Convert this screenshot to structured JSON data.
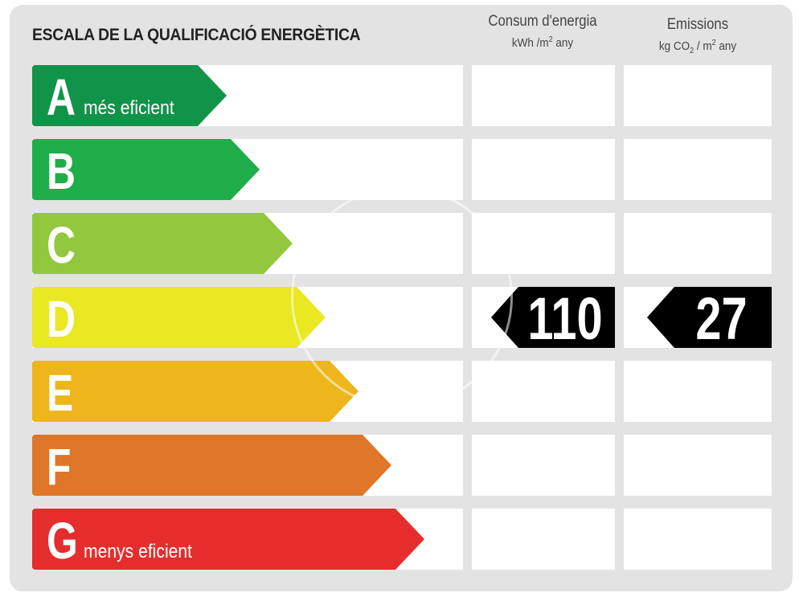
{
  "title": "ESCALA DE LA QUALIFICACIÓ ENERGÈTICA",
  "columns": {
    "consumption": {
      "label": "Consum d'energia",
      "unit_prefix": "kWh /m",
      "unit_exp": "2",
      "unit_suffix": " any"
    },
    "emissions": {
      "label": "Emissions",
      "unit_a": "kg CO",
      "unit_sub": "2",
      "unit_b": " / m",
      "unit_exp": "2",
      "unit_suffix": " any"
    }
  },
  "bands": [
    {
      "letter": "A",
      "label": "més eficient",
      "color": "#12934a"
    },
    {
      "letter": "B",
      "label": "",
      "color": "#1fae4a"
    },
    {
      "letter": "C",
      "label": "",
      "color": "#93c83e"
    },
    {
      "letter": "D",
      "label": "",
      "color": "#e9e823"
    },
    {
      "letter": "E",
      "label": "",
      "color": "#efb51c"
    },
    {
      "letter": "F",
      "label": "",
      "color": "#e0762a"
    },
    {
      "letter": "G",
      "label": "menys eficient",
      "color": "#e52d2d"
    }
  ],
  "rating": {
    "band": "D",
    "consumption_value": "110",
    "emissions_value": "27",
    "tag_color": "#000000"
  }
}
